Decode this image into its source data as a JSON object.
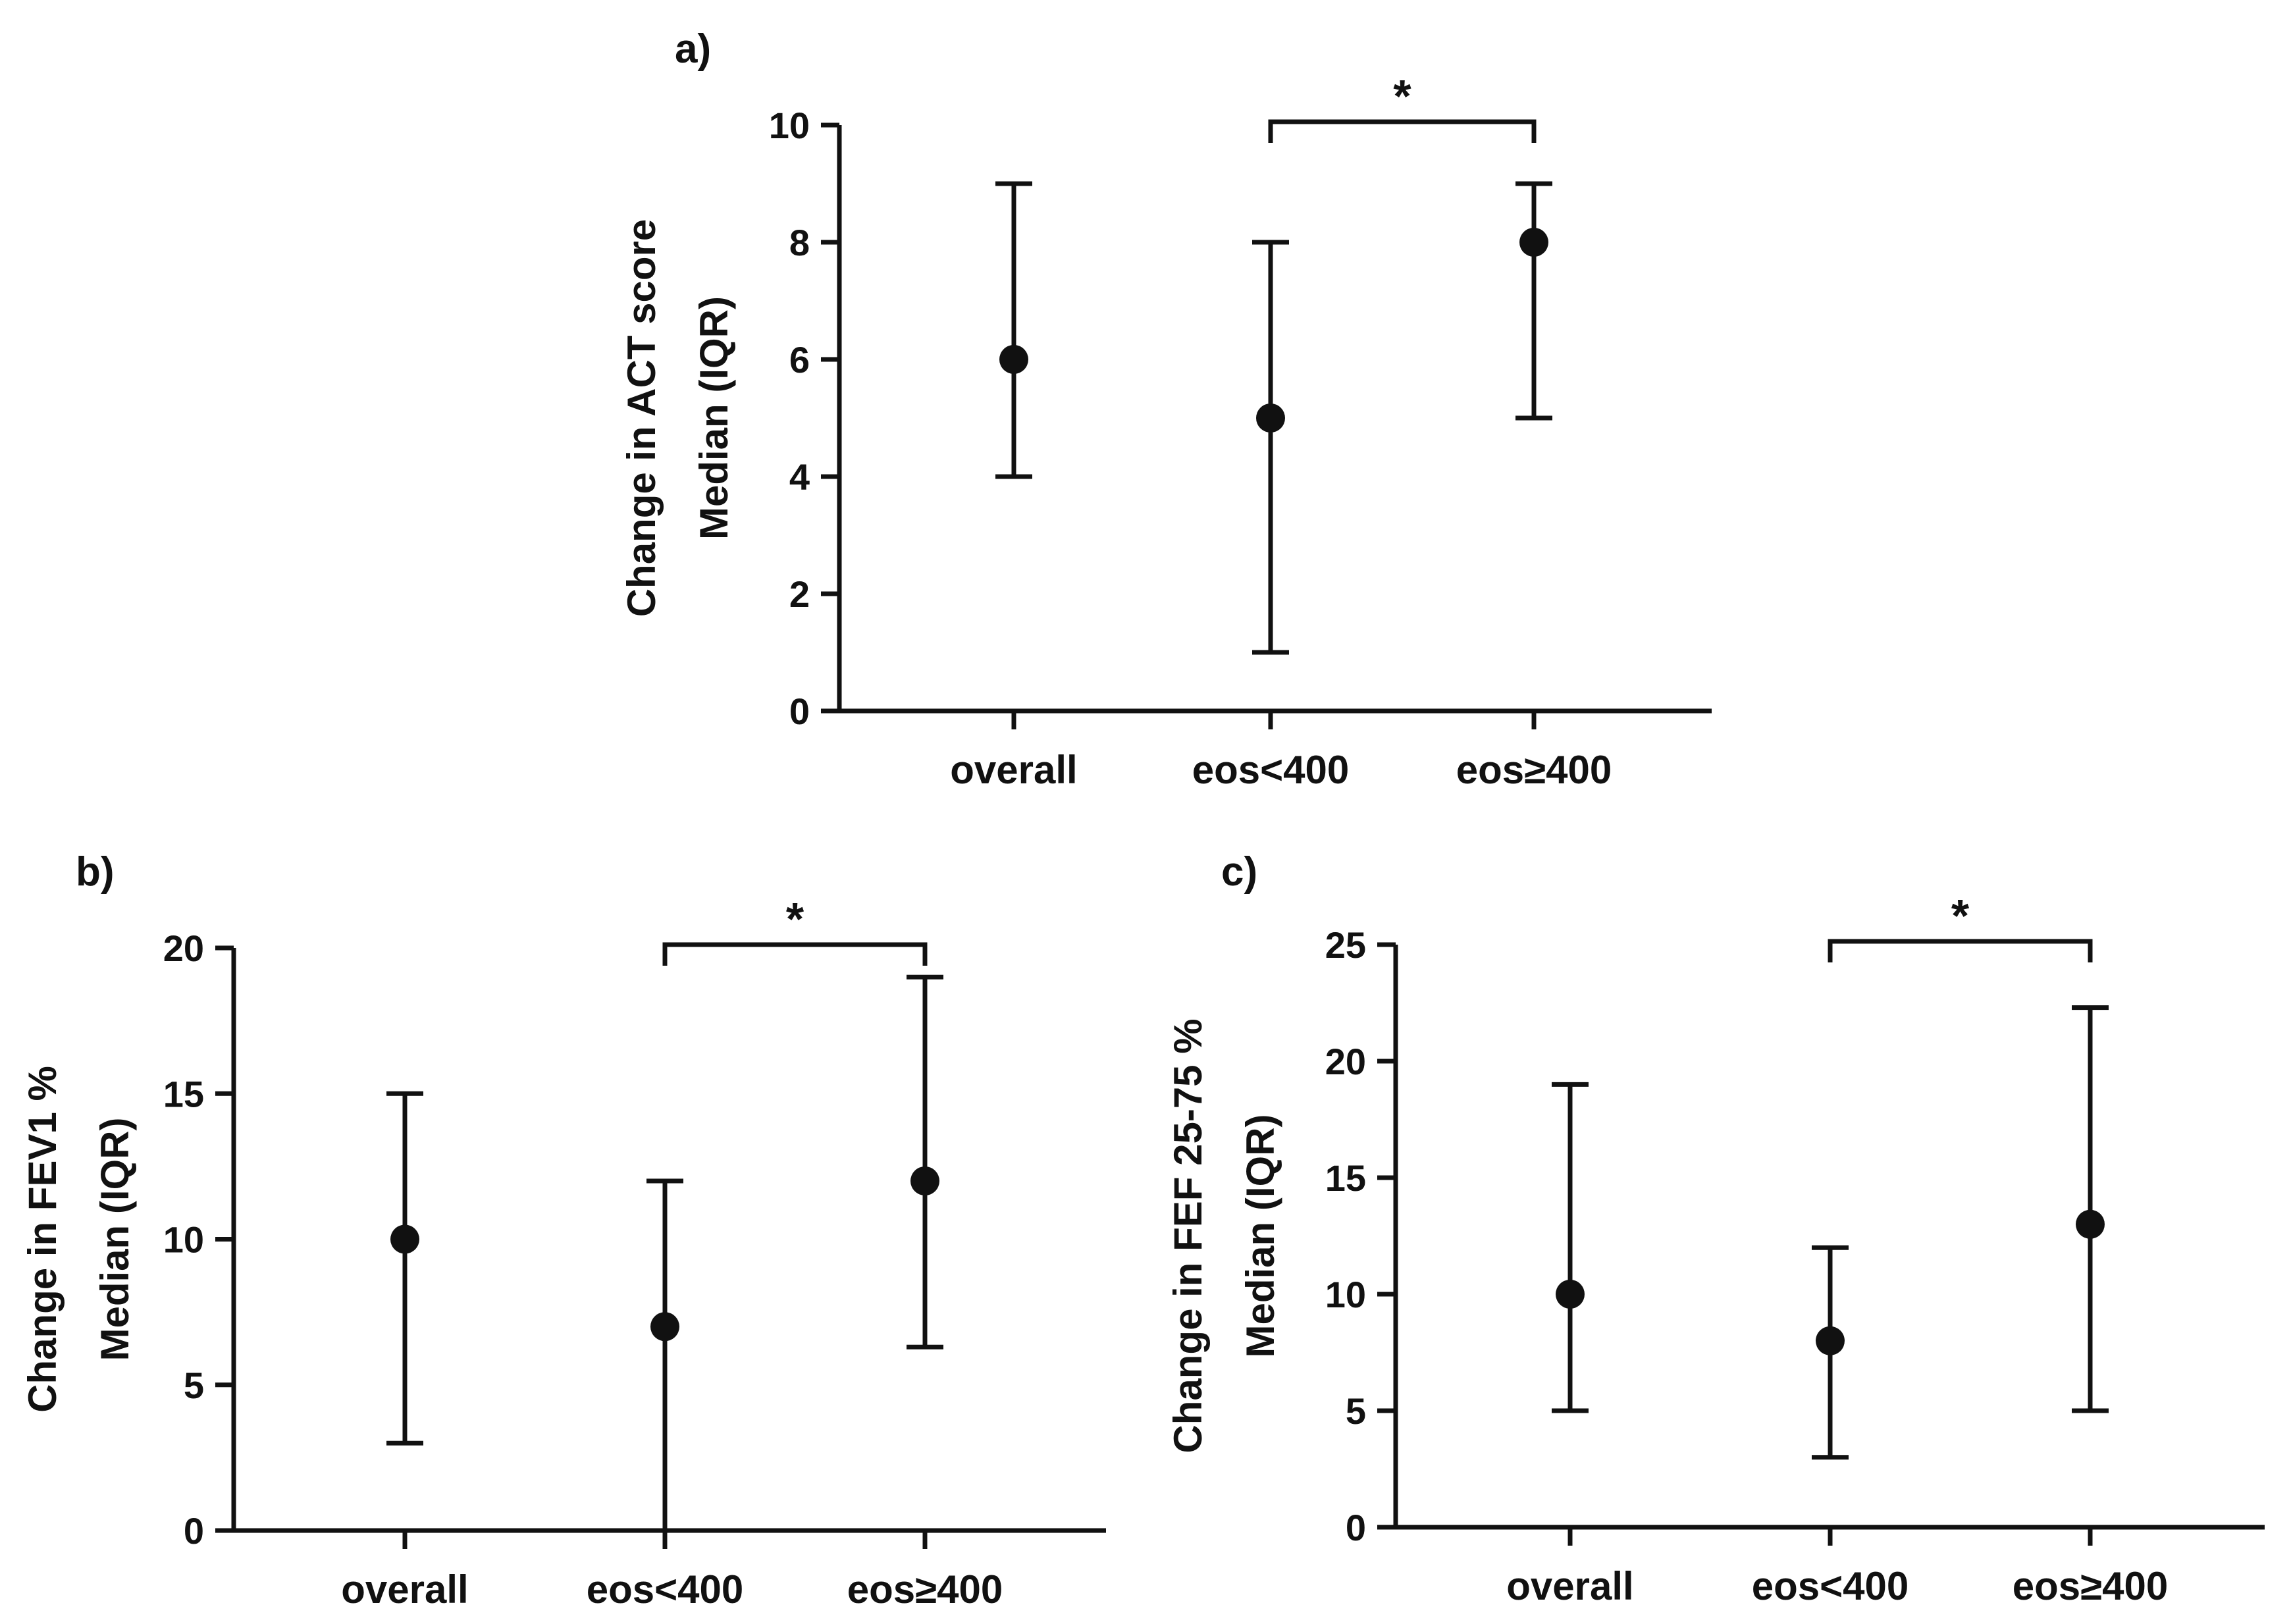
{
  "chart_data": [
    {
      "id": "a",
      "panel_label": "a)",
      "type": "scatter",
      "subtype": "median-with-IQR-error-bars",
      "categories": [
        "overall",
        "eos<400",
        "eos≥400"
      ],
      "median": [
        6,
        5,
        8
      ],
      "q1": [
        4,
        1,
        5
      ],
      "q3": [
        9,
        8,
        9
      ],
      "ylabel_lines": [
        "Change in ACT score",
        "Median (IQR)"
      ],
      "ylim": [
        0,
        10
      ],
      "yticks": [
        0,
        2,
        4,
        6,
        8,
        10
      ],
      "significance": {
        "from": "eos<400",
        "to": "eos≥400",
        "label": "*"
      }
    },
    {
      "id": "b",
      "panel_label": "b)",
      "type": "scatter",
      "subtype": "median-with-IQR-error-bars",
      "categories": [
        "overall",
        "eos<400",
        "eos≥400"
      ],
      "median": [
        10,
        7,
        12
      ],
      "q1": [
        3,
        0,
        6.3
      ],
      "q3": [
        15,
        12,
        19
      ],
      "ylabel_lines": [
        "Change in FEV1 %",
        "Median (IQR)"
      ],
      "ylim": [
        0,
        20
      ],
      "yticks": [
        0,
        5,
        10,
        15,
        20
      ],
      "significance": {
        "from": "eos<400",
        "to": "eos≥400",
        "label": "*"
      }
    },
    {
      "id": "c",
      "panel_label": "c)",
      "type": "scatter",
      "subtype": "median-with-IQR-error-bars",
      "categories": [
        "overall",
        "eos<400",
        "eos≥400"
      ],
      "median": [
        10,
        8,
        13
      ],
      "q1": [
        5,
        3,
        5
      ],
      "q3": [
        19,
        12,
        22.3
      ],
      "ylabel_lines": [
        "Change in FEF 25-75 %",
        "Median (IQR)"
      ],
      "ylim": [
        0,
        25
      ],
      "yticks": [
        0,
        5,
        10,
        15,
        20,
        25
      ],
      "significance": {
        "from": "eos<400",
        "to": "eos≥400",
        "label": "*"
      }
    }
  ]
}
